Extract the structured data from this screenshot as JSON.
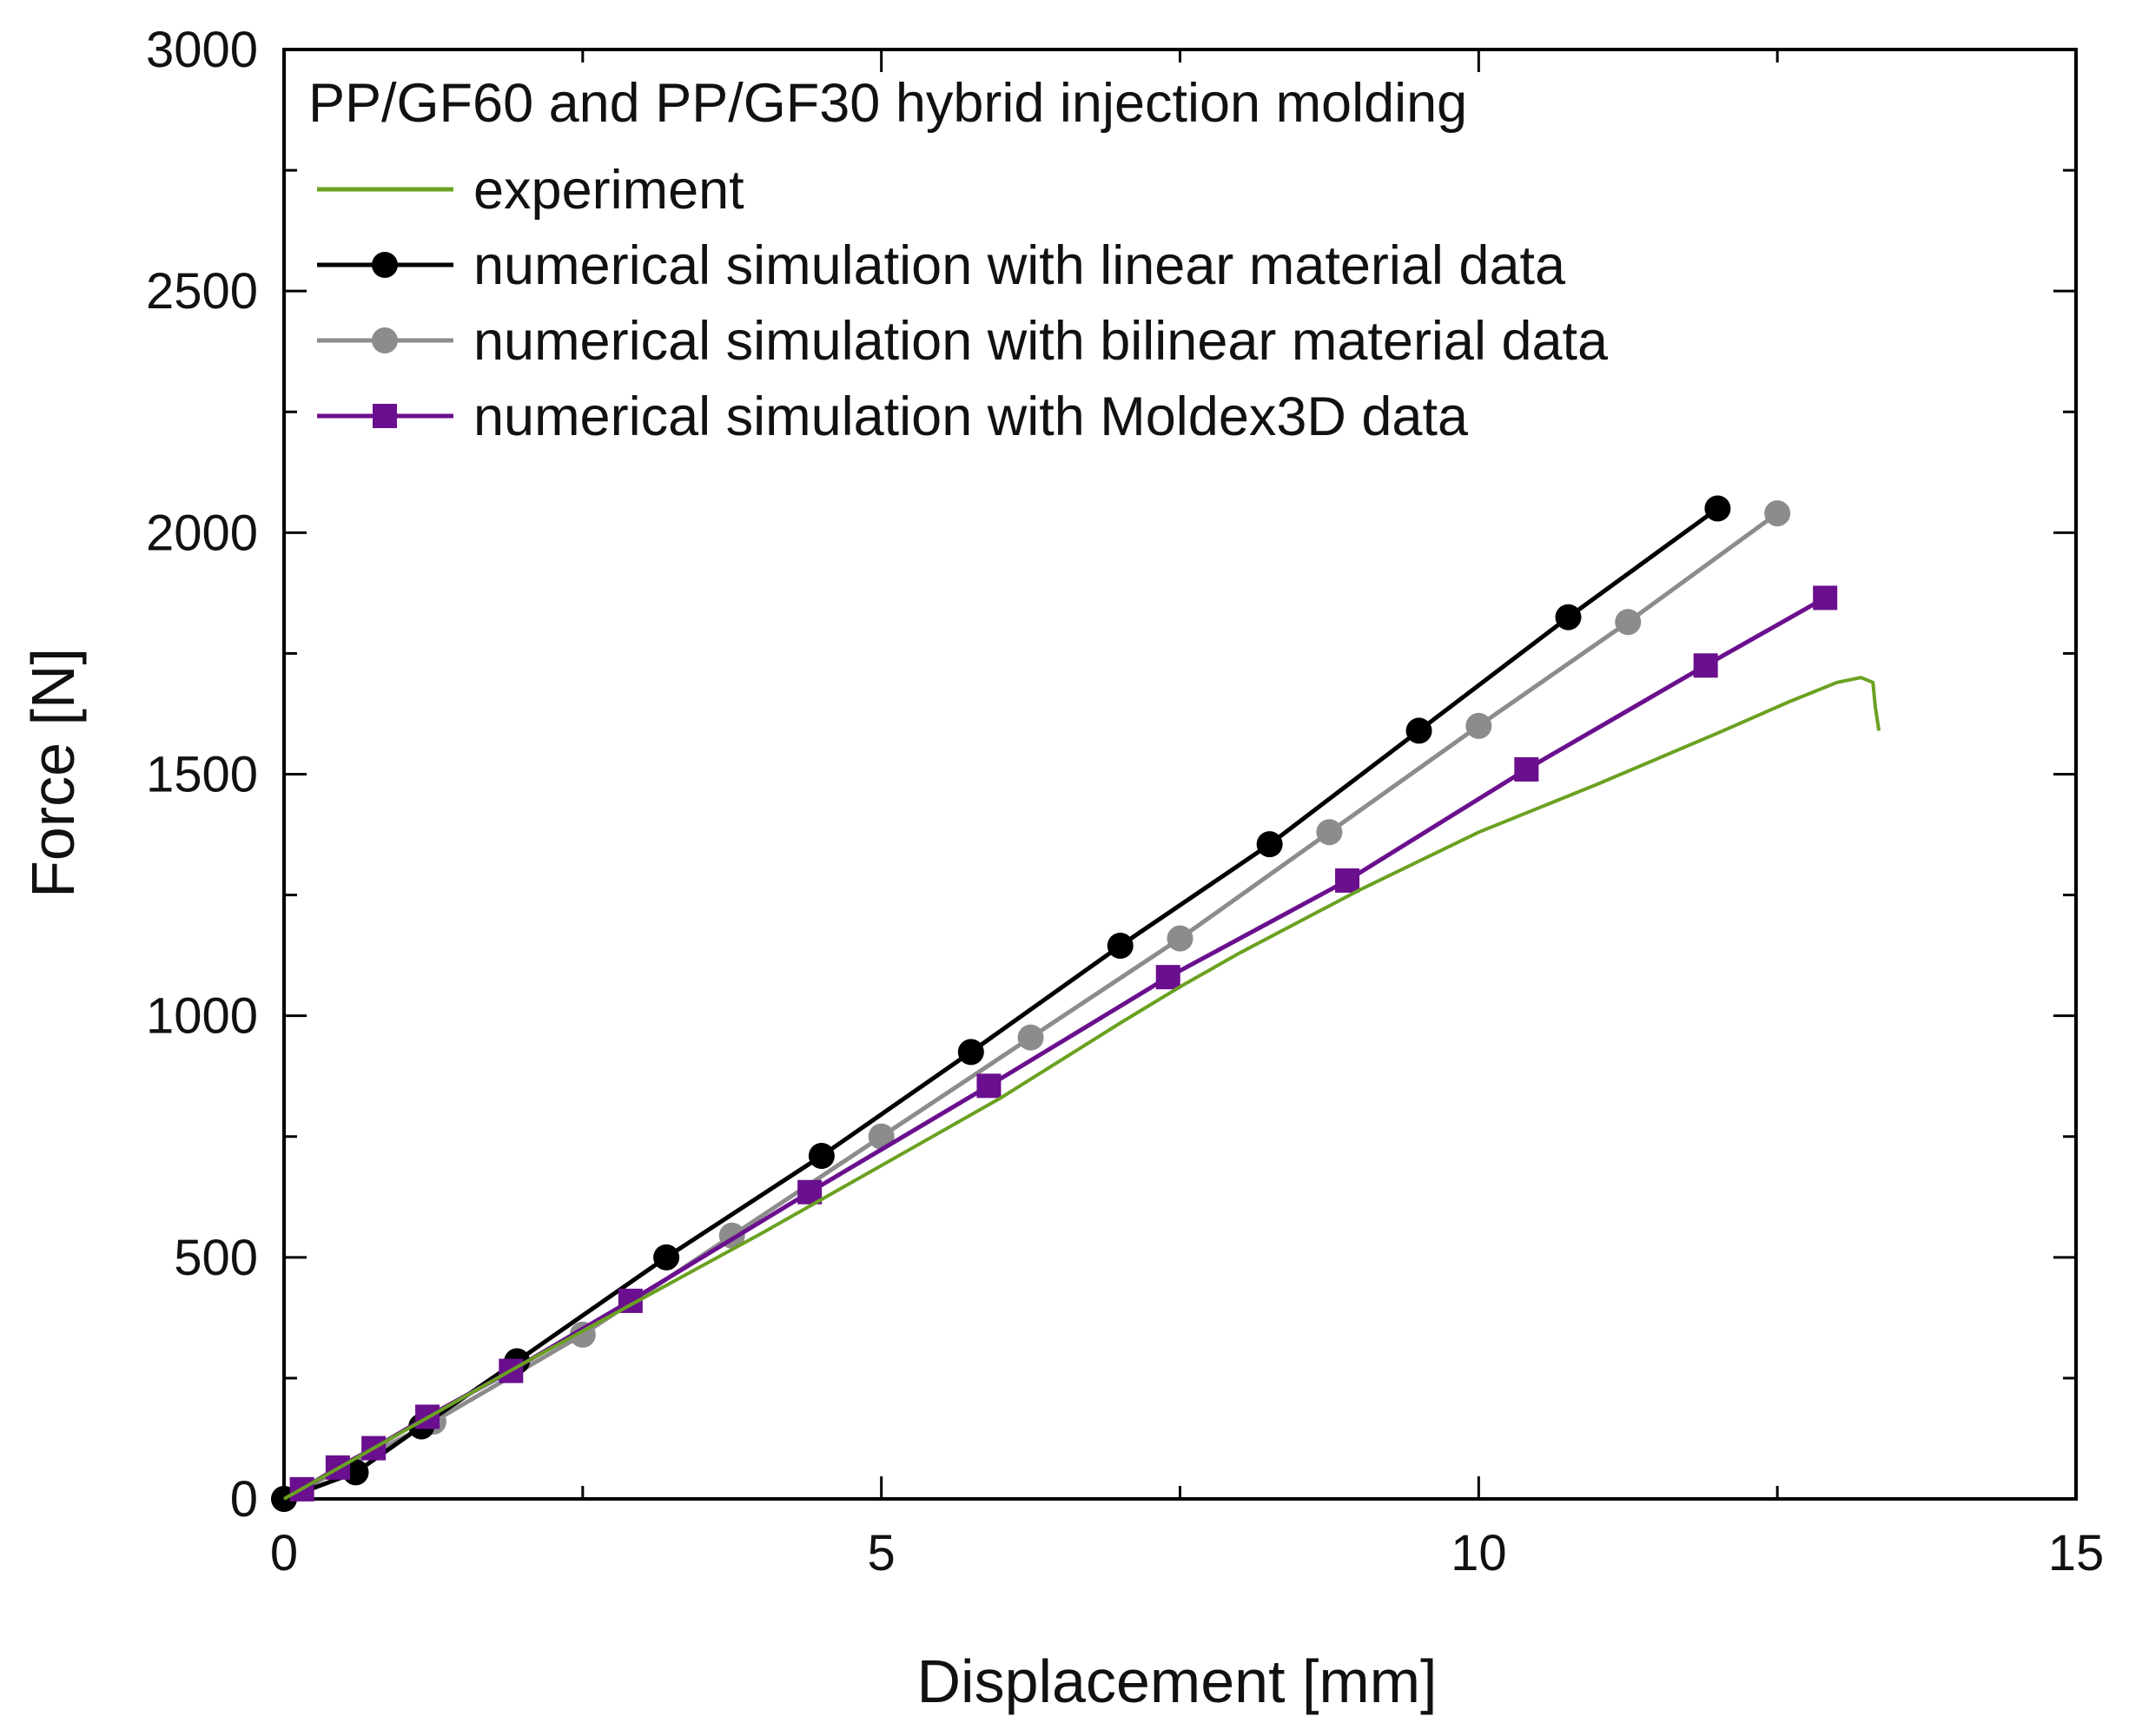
{
  "chart_data": {
    "type": "line",
    "title": "PP/GF60 and PP/GF30 hybrid injection molding",
    "xlabel": "Displacement [mm]",
    "ylabel": "Force [N]",
    "xlim": [
      0,
      15
    ],
    "ylim": [
      0,
      3000
    ],
    "x_ticks": [
      0,
      5,
      10,
      15
    ],
    "y_ticks": [
      0,
      500,
      1000,
      1500,
      2000,
      2500,
      3000
    ],
    "grid": false,
    "legend_position": "top-left",
    "series": [
      {
        "name": "experiment",
        "color": "#6aa121",
        "marker": "none",
        "x": [
          0,
          1,
          2,
          3,
          4,
          5,
          6,
          7,
          7.5,
          8,
          9,
          10,
          11,
          12,
          12.6,
          13.0,
          13.2,
          13.3,
          13.32,
          13.35
        ],
        "y": [
          0,
          140,
          280,
          415,
          550,
          690,
          830,
          985,
          1060,
          1130,
          1260,
          1380,
          1480,
          1585,
          1650,
          1690,
          1700,
          1690,
          1640,
          1590
        ]
      },
      {
        "name": "numerical simulation with linear material data",
        "color": "#000000",
        "marker": "circle",
        "x": [
          0,
          0.6,
          1.15,
          1.95,
          3.2,
          4.5,
          5.75,
          7.0,
          8.25,
          9.5,
          10.75,
          12.0
        ],
        "y": [
          0,
          55,
          150,
          285,
          500,
          710,
          925,
          1145,
          1355,
          1590,
          1825,
          2050
        ]
      },
      {
        "name": "numerical simulation with bilinear material data",
        "color": "#8c8c8c",
        "marker": "circle",
        "x": [
          0,
          1.25,
          2.5,
          3.75,
          5.0,
          6.25,
          7.5,
          8.75,
          10.0,
          11.25,
          12.5
        ],
        "y": [
          0,
          160,
          340,
          545,
          750,
          955,
          1160,
          1380,
          1600,
          1815,
          2040
        ]
      },
      {
        "name": "numerical simulation with Moldex3D data",
        "color": "#6a0f8e",
        "marker": "square",
        "x": [
          0.15,
          0.45,
          0.75,
          1.2,
          1.9,
          2.9,
          4.4,
          5.9,
          7.4,
          8.9,
          10.4,
          11.9,
          12.9
        ],
        "y": [
          20,
          65,
          105,
          170,
          265,
          410,
          635,
          855,
          1080,
          1280,
          1510,
          1725,
          1865
        ]
      }
    ]
  }
}
